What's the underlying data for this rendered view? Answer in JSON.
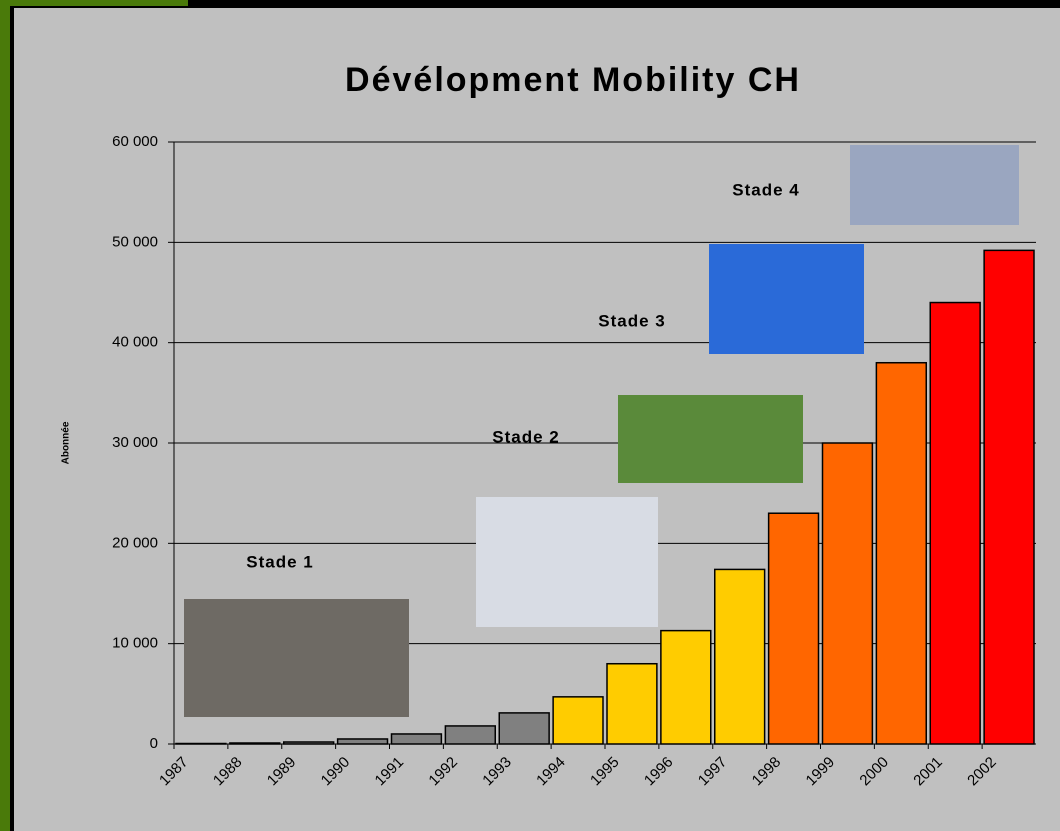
{
  "chart_data": {
    "type": "bar",
    "title": "Dévélopment Mobility CH",
    "y_label": "Abonnée",
    "categories": [
      "1987",
      "1988",
      "1989",
      "1990",
      "1991",
      "1992",
      "1993",
      "1994",
      "1995",
      "1996",
      "1997",
      "1998",
      "1999",
      "2000",
      "2001",
      "2002"
    ],
    "values": [
      50,
      100,
      200,
      500,
      1000,
      1800,
      3100,
      4700,
      8000,
      11300,
      17400,
      23000,
      30000,
      38000,
      44000,
      49200
    ],
    "colors": [
      "#808080",
      "#808080",
      "#808080",
      "#808080",
      "#808080",
      "#808080",
      "#808080",
      "#ffcc00",
      "#ffcc00",
      "#ffcc00",
      "#ffcc00",
      "#ff6600",
      "#ff6600",
      "#ff6600",
      "#ff0000",
      "#ff0000"
    ],
    "ylim": [
      0,
      60000
    ],
    "yticks": [
      0,
      {
        "value": 10000,
        "label": "10 000"
      },
      {
        "value": 20000,
        "label": "20 000"
      },
      {
        "value": 30000,
        "label": "30 000"
      },
      {
        "value": 40000,
        "label": "40 000"
      },
      {
        "value": 50000,
        "label": "50 000"
      },
      {
        "value": 60000,
        "label": "60 000"
      }
    ],
    "grid": true,
    "annotations": [
      "Stade 1",
      "Stade 2",
      "Stade 3",
      "Stade 4"
    ]
  }
}
